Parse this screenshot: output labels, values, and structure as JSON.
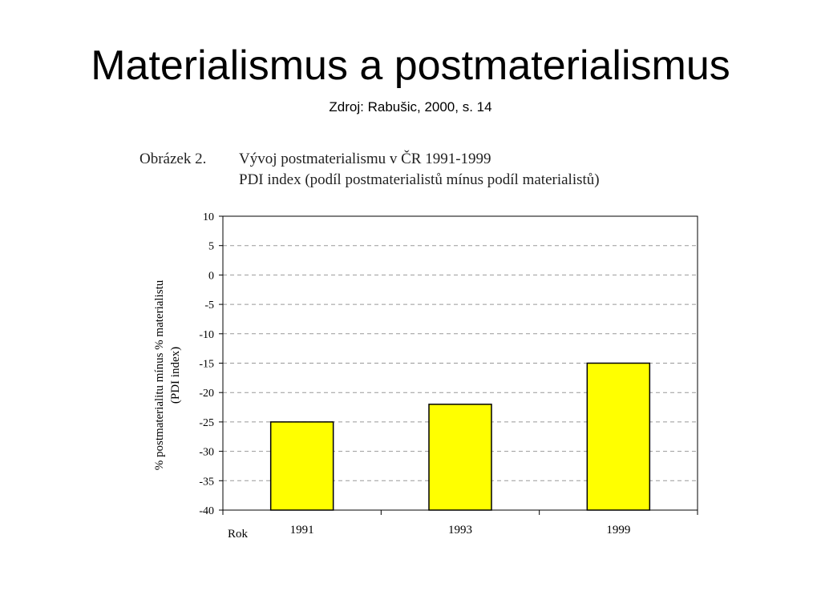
{
  "slide": {
    "title": "Materialismus a postmaterialismus",
    "subtitle": "Zdroj: Rabušic, 2000, s. 14"
  },
  "figure": {
    "label": "Obrázek 2.",
    "caption_line1": "Vývoj postmaterialismu v ČR 1991-1999",
    "caption_line2": "PDI index (podíl postmaterialistů mínus podíl materialistů)"
  },
  "chart_data": {
    "type": "bar",
    "categories": [
      "1991",
      "1993",
      "1999"
    ],
    "values": [
      -25,
      -22,
      -15
    ],
    "xlabel": "Rok",
    "ylabel_line1": "% postmaterialitu mínus % materialistu",
    "ylabel_line2": "(PDI index)",
    "ylim": [
      -40,
      10
    ],
    "yticks": [
      10,
      5,
      0,
      -5,
      -10,
      -15,
      -20,
      -25,
      -30,
      -35,
      -40
    ],
    "grid": true,
    "legend": "none",
    "bar_color": "#ffff00",
    "grid_color": "#999999"
  }
}
